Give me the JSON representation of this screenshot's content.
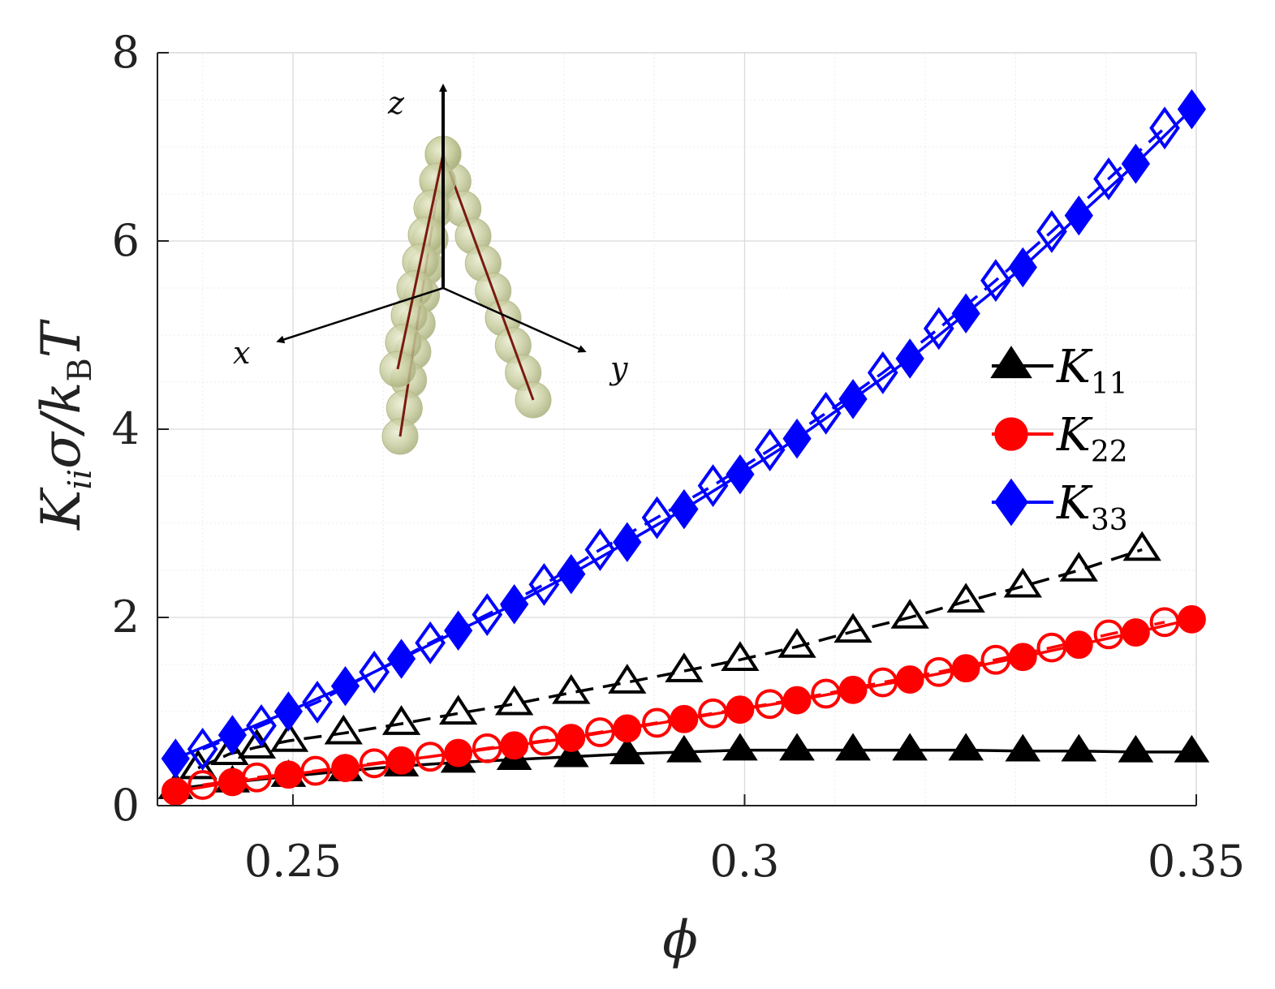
{
  "chart_data": {
    "type": "line",
    "xlabel": "ϕ",
    "ylabel": "K",
    "ylabel_sub": "ii",
    "ylabel_rest": "σ/k",
    "ylabel_sub2": "B",
    "ylabel_end": "T",
    "xlim": [
      0.235,
      0.35
    ],
    "ylim": [
      0,
      8
    ],
    "xticks": [
      "0.25",
      "0.3",
      "0.35"
    ],
    "xtick_values": [
      0.25,
      0.3,
      0.35
    ],
    "yticks": [
      "0",
      "2",
      "4",
      "6",
      "8"
    ],
    "ytick_values": [
      0,
      2,
      4,
      6,
      8
    ],
    "grid": true,
    "legend_position": "right",
    "legend": [
      {
        "symbol": "K",
        "sub": "11"
      },
      {
        "symbol": "K",
        "sub": "22"
      },
      {
        "symbol": "K",
        "sub": "33"
      }
    ],
    "series": [
      {
        "name": "K11",
        "style": "solid",
        "filled": true,
        "marker": "triangle",
        "color": "#000000",
        "x": [
          0.237,
          0.2433,
          0.2495,
          0.2558,
          0.262,
          0.2683,
          0.2745,
          0.2808,
          0.287,
          0.2933,
          0.2995,
          0.3058,
          0.312,
          0.3183,
          0.3245,
          0.3308,
          0.337,
          0.3433,
          0.3495
        ],
        "y": [
          0.18,
          0.25,
          0.31,
          0.37,
          0.42,
          0.46,
          0.49,
          0.52,
          0.55,
          0.57,
          0.59,
          0.59,
          0.59,
          0.59,
          0.59,
          0.58,
          0.58,
          0.57,
          0.57
        ]
      },
      {
        "name": "K11 (dashed)",
        "style": "dashed",
        "filled": false,
        "marker": "triangle",
        "color": "#000000",
        "x": [
          0.2395,
          0.243,
          0.246,
          0.2496,
          0.2556,
          0.262,
          0.2683,
          0.2745,
          0.2808,
          0.287,
          0.2933,
          0.2995,
          0.3058,
          0.312,
          0.3183,
          0.3245,
          0.3308,
          0.337,
          0.344
        ],
        "y": [
          0.4,
          0.55,
          0.62,
          0.69,
          0.77,
          0.87,
          0.98,
          1.08,
          1.2,
          1.31,
          1.43,
          1.55,
          1.69,
          1.85,
          2.0,
          2.17,
          2.33,
          2.5,
          2.72
        ]
      },
      {
        "name": "K22",
        "style": "solid",
        "filled": true,
        "marker": "circle",
        "color": "#ff0000",
        "x": [
          0.237,
          0.2433,
          0.2495,
          0.2558,
          0.262,
          0.2683,
          0.2745,
          0.2808,
          0.287,
          0.2933,
          0.2995,
          0.3058,
          0.312,
          0.3183,
          0.3245,
          0.3308,
          0.337,
          0.3433,
          0.3495
        ],
        "y": [
          0.15,
          0.25,
          0.33,
          0.4,
          0.48,
          0.56,
          0.64,
          0.72,
          0.82,
          0.92,
          1.02,
          1.12,
          1.23,
          1.34,
          1.46,
          1.58,
          1.71,
          1.84,
          1.98
        ]
      },
      {
        "name": "K22 (dashed)",
        "style": "dashed",
        "filled": false,
        "marker": "circle",
        "color": "#ff0000",
        "x": [
          0.24,
          0.246,
          0.2525,
          0.259,
          0.2652,
          0.2715,
          0.2778,
          0.284,
          0.2903,
          0.2965,
          0.3028,
          0.309,
          0.3153,
          0.3215,
          0.3278,
          0.334,
          0.3403,
          0.3465
        ],
        "y": [
          0.22,
          0.3,
          0.37,
          0.45,
          0.52,
          0.61,
          0.69,
          0.78,
          0.88,
          0.98,
          1.08,
          1.19,
          1.31,
          1.42,
          1.55,
          1.68,
          1.82,
          1.95
        ]
      },
      {
        "name": "K33",
        "style": "solid",
        "filled": true,
        "marker": "diamond",
        "color": "#0000ff",
        "x": [
          0.237,
          0.2433,
          0.2495,
          0.2558,
          0.262,
          0.2683,
          0.2745,
          0.2808,
          0.287,
          0.2933,
          0.2995,
          0.3058,
          0.312,
          0.3183,
          0.3245,
          0.3308,
          0.337,
          0.3433,
          0.3495
        ],
        "y": [
          0.5,
          0.75,
          1.0,
          1.27,
          1.56,
          1.86,
          2.14,
          2.46,
          2.8,
          3.15,
          3.52,
          3.9,
          4.32,
          4.75,
          5.23,
          5.72,
          6.27,
          6.82,
          7.4
        ]
      },
      {
        "name": "K33 (dashed)",
        "style": "dashed",
        "filled": false,
        "marker": "diamond",
        "color": "#0000ff",
        "x": [
          0.24,
          0.2465,
          0.2527,
          0.259,
          0.2652,
          0.2715,
          0.2778,
          0.284,
          0.2903,
          0.2965,
          0.3028,
          0.309,
          0.3153,
          0.3215,
          0.3278,
          0.334,
          0.3403,
          0.3465
        ],
        "y": [
          0.6,
          0.85,
          1.1,
          1.42,
          1.73,
          2.03,
          2.35,
          2.72,
          3.06,
          3.4,
          3.78,
          4.17,
          4.6,
          5.07,
          5.58,
          6.1,
          6.66,
          7.2
        ]
      }
    ]
  },
  "inset": {
    "axis_x": "x",
    "axis_y": "y",
    "axis_z": "z"
  }
}
